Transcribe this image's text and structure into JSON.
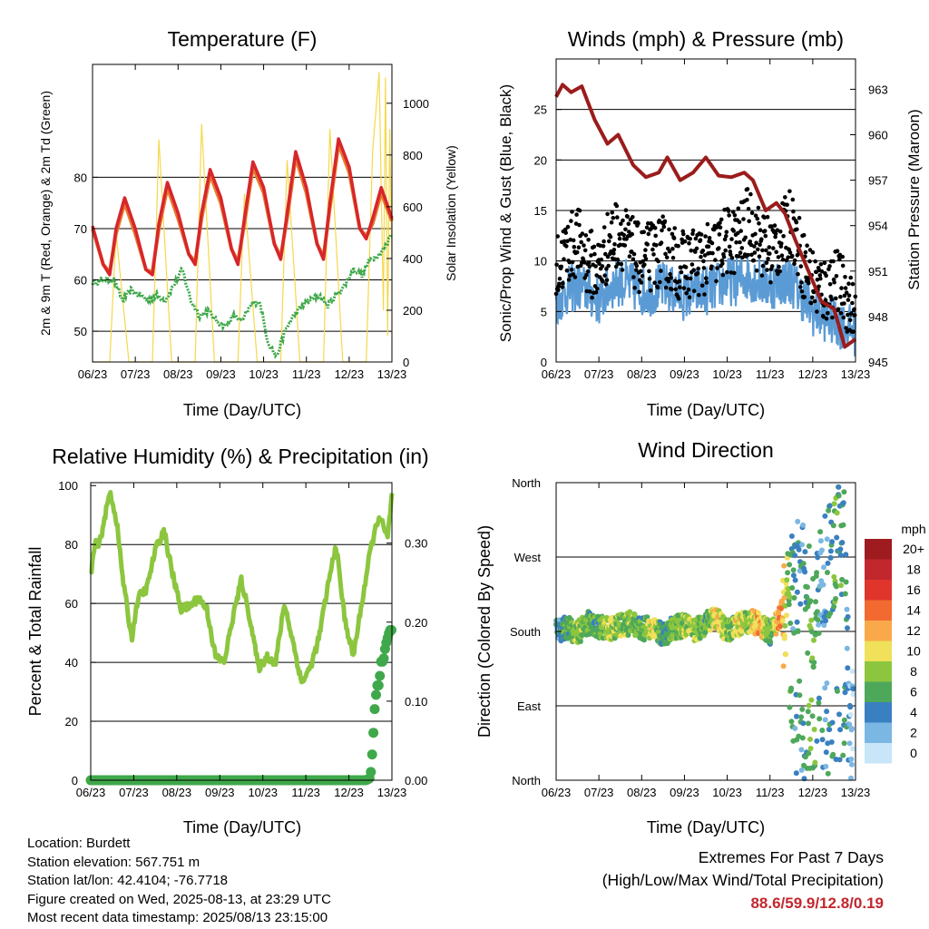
{
  "xticks": [
    "06/23",
    "07/23",
    "08/23",
    "09/23",
    "10/23",
    "11/23",
    "12/23",
    "13/23"
  ],
  "colors": {
    "temp2m": "#e8792c",
    "temp9m": "#d7262b",
    "dew": "#3fa84a",
    "solar": "#f5d84a",
    "wind": "#5b9bd5",
    "gust": "#000000",
    "pressure": "#9b1c1c",
    "rh": "#8cc63f",
    "precip": "#3fa84a"
  },
  "panels": {
    "temperature": {
      "title": "Temperature (F)",
      "xlabel": "Time (Day/UTC)",
      "ylabel": "2m & 9m T (Red, Orange) & 2m Td (Green)",
      "ylabel_right": "Solar Insolation (Yellow)",
      "yticks": [
        "50",
        "60",
        "70",
        "80"
      ],
      "yticks_right": [
        "0",
        "200",
        "400",
        "600",
        "800",
        "1000"
      ]
    },
    "winds": {
      "title": "Winds (mph) & Pressure (mb)",
      "xlabel": "Time (Day/UTC)",
      "ylabel": "Sonic/Prop Wind & Gust (Blue, Black)",
      "ylabel_right": "Station Pressure (Maroon)",
      "yticks": [
        "0",
        "5",
        "10",
        "15",
        "20",
        "25"
      ],
      "yticks_right": [
        "945",
        "948",
        "951",
        "954",
        "957",
        "960",
        "963"
      ]
    },
    "humidity": {
      "title": "Relative Humidity (%) & Precipitation (in)",
      "xlabel": "Time (Day/UTC)",
      "ylabel": "Percent & Total Rainfall",
      "yticks": [
        "0",
        "20",
        "40",
        "60",
        "80",
        "100"
      ],
      "yticks_right": [
        "0.00",
        "0.10",
        "0.20",
        "0.30"
      ]
    },
    "direction": {
      "title": "Wind Direction",
      "xlabel": "Time (Day/UTC)",
      "ylabel": "Direction (Colored By Speed)",
      "yticks": [
        "North",
        "East",
        "South",
        "West",
        "North"
      ],
      "legend_title": "mph",
      "legend_labels": [
        "20+",
        "18",
        "16",
        "14",
        "12",
        "10",
        "8",
        "6",
        "4",
        "2",
        "0"
      ],
      "legend_colors": [
        "#9e1b1f",
        "#c1272d",
        "#e0352b",
        "#f26a30",
        "#f9a94a",
        "#f0e05a",
        "#8cc63f",
        "#4ea85a",
        "#3a80c1",
        "#7bb7e3",
        "#c8e6f8"
      ]
    }
  },
  "chart_data": [
    {
      "type": "line",
      "ylim": [
        44,
        102
      ],
      "ylim_right": [
        0,
        1150
      ],
      "x_days": [
        0,
        7
      ],
      "series": [
        {
          "x": [
            0,
            0.25,
            0.4,
            0.55,
            0.75,
            1.0,
            1.25,
            1.4,
            1.55,
            1.75,
            2.0,
            2.25,
            2.4,
            2.55,
            2.75,
            3.0,
            3.25,
            3.4,
            3.55,
            3.75,
            4.0,
            4.25,
            4.4,
            4.55,
            4.75,
            5.0,
            5.25,
            5.4,
            5.55,
            5.75,
            6.0,
            6.25,
            6.4,
            6.55,
            6.75,
            7.0
          ],
          "values": [
            70.5,
            63,
            61,
            70,
            76,
            70,
            62,
            61,
            71,
            79,
            73,
            65,
            63,
            73,
            81.5,
            76,
            66,
            63,
            72,
            83,
            78,
            67,
            64,
            73,
            85,
            78,
            67,
            64,
            75,
            87.5,
            82,
            70,
            68,
            72,
            78,
            72
          ]
        },
        {
          "x": [
            0,
            0.25,
            0.4,
            0.55,
            0.75,
            1.0,
            1.25,
            1.4,
            1.55,
            1.75,
            2.0,
            2.25,
            2.4,
            2.55,
            2.75,
            3.0,
            3.25,
            3.4,
            3.55,
            3.75,
            4.0,
            4.25,
            4.4,
            4.55,
            4.75,
            5.0,
            5.25,
            5.4,
            5.55,
            5.75,
            6.0,
            6.25,
            6.4,
            6.55,
            6.75,
            7.0
          ],
          "values": [
            70,
            63,
            61.5,
            69,
            75,
            69,
            62,
            61.5,
            70,
            78,
            72,
            65,
            63.5,
            72,
            80.5,
            75,
            66,
            63.5,
            71,
            82,
            77,
            67,
            64.5,
            72,
            84,
            77,
            67,
            64.5,
            74,
            86.5,
            81,
            70,
            68.5,
            71,
            77,
            71.5
          ]
        },
        {
          "x": [
            0,
            0.3,
            0.5,
            0.7,
            0.9,
            1.1,
            1.3,
            1.5,
            1.7,
            1.9,
            2.1,
            2.3,
            2.5,
            2.7,
            2.9,
            3.1,
            3.3,
            3.5,
            3.7,
            3.9,
            4.1,
            4.3,
            4.5,
            4.7,
            4.9,
            5.1,
            5.3,
            5.5,
            5.7,
            5.9,
            6.1,
            6.3,
            6.5,
            6.7,
            6.9,
            7.0
          ],
          "values": [
            59.5,
            60,
            60,
            56,
            58,
            57,
            56,
            57,
            56,
            59,
            62,
            56,
            53,
            54,
            52,
            51,
            53,
            52,
            55,
            56,
            48,
            45,
            50,
            53,
            55,
            56,
            57,
            55,
            57,
            59,
            62,
            61,
            64,
            65,
            67,
            70
          ]
        },
        {
          "x": [
            0,
            0.4,
            0.55,
            0.85,
            1.0,
            1.4,
            1.55,
            1.85,
            2.0,
            2.4,
            2.55,
            2.85,
            3.0,
            3.4,
            3.55,
            3.85,
            4.0,
            4.4,
            4.55,
            4.85,
            5.0,
            5.4,
            5.55,
            5.85,
            6.0,
            6.4,
            6.55,
            6.7,
            6.8,
            6.85,
            6.9,
            6.95,
            7.0
          ],
          "values": [
            0,
            0,
            500,
            0,
            0,
            0,
            860,
            0,
            0,
            0,
            920,
            0,
            0,
            0,
            650,
            0,
            0,
            0,
            780,
            0,
            0,
            0,
            900,
            0,
            0,
            0,
            820,
            1120,
            200,
            1100,
            100,
            900,
            400
          ]
        }
      ]
    },
    {
      "type": "line",
      "ylim": [
        0,
        30
      ],
      "ylim_right": [
        945,
        965
      ],
      "x_days": [
        0,
        7
      ],
      "series": [
        {
          "x": [
            0,
            0.25,
            0.5,
            0.75,
            1.0,
            1.25,
            1.5,
            1.75,
            2.0,
            2.25,
            2.5,
            2.75,
            3.0,
            3.25,
            3.5,
            3.75,
            4.0,
            4.25,
            4.5,
            4.75,
            5.0,
            5.25,
            5.5,
            5.75,
            6.0,
            6.25,
            6.5,
            6.75,
            7.0
          ],
          "values": [
            6,
            7,
            7.5,
            7,
            6,
            7.5,
            8,
            7.5,
            7,
            7,
            7.5,
            7,
            6.5,
            7,
            7,
            7.5,
            8,
            8,
            8.5,
            8,
            7.5,
            8,
            8,
            6.5,
            5,
            4.5,
            4,
            3.5,
            3
          ]
        },
        {
          "x": [
            0,
            0.25,
            0.5,
            0.75,
            1.0,
            1.25,
            1.5,
            1.75,
            2.0,
            2.25,
            2.5,
            2.75,
            3.0,
            3.25,
            3.5,
            3.75,
            4.0,
            4.25,
            4.5,
            4.75,
            5.0,
            5.25,
            5.5,
            5.75,
            6.0,
            6.25,
            6.5,
            6.75,
            7.0
          ],
          "values": [
            9,
            11,
            12,
            10,
            9,
            12,
            13,
            11,
            10,
            10.5,
            11,
            10,
            9.5,
            10,
            10,
            11,
            12,
            12,
            14,
            12,
            11,
            12,
            14,
            10,
            8,
            7,
            8,
            7,
            4
          ]
        },
        {
          "x": [
            0,
            0.15,
            0.35,
            0.6,
            0.9,
            1.2,
            1.45,
            1.8,
            2.1,
            2.4,
            2.6,
            2.9,
            3.2,
            3.5,
            3.8,
            4.1,
            4.4,
            4.6,
            4.9,
            5.15,
            5.35,
            5.6,
            5.9,
            6.2,
            6.5,
            6.75,
            7.0
          ],
          "values": [
            962.5,
            963.3,
            962.8,
            963.2,
            961,
            959.4,
            960,
            958,
            957.2,
            957.5,
            958.5,
            957,
            957.5,
            958.5,
            957.3,
            957.2,
            957.5,
            957,
            955,
            955.5,
            954.8,
            953,
            951,
            949,
            948.5,
            946,
            946.5
          ]
        }
      ]
    },
    {
      "type": "line",
      "ylim": [
        0,
        101
      ],
      "ylim_right": [
        0,
        0.3765
      ],
      "x_days": [
        0,
        7
      ],
      "series": [
        {
          "x": [
            0,
            0.1,
            0.2,
            0.45,
            0.6,
            0.75,
            0.95,
            1.1,
            1.3,
            1.5,
            1.7,
            1.9,
            2.1,
            2.3,
            2.5,
            2.7,
            2.9,
            3.1,
            3.3,
            3.5,
            3.7,
            3.9,
            4.1,
            4.3,
            4.5,
            4.7,
            4.9,
            5.1,
            5.3,
            5.5,
            5.7,
            5.9,
            6.1,
            6.3,
            6.5,
            6.7,
            6.9,
            7.0
          ],
          "values": [
            70,
            80,
            80,
            98,
            88,
            68,
            48,
            62,
            65,
            78,
            85,
            70,
            58,
            59,
            62,
            58,
            42,
            40,
            55,
            68,
            55,
            38,
            42,
            40,
            60,
            47,
            33,
            38,
            48,
            65,
            80,
            55,
            42,
            60,
            78,
            90,
            82,
            97
          ]
        },
        {
          "x": [
            0,
            6.4,
            6.5,
            6.55,
            6.6,
            6.65,
            6.7,
            6.75,
            6.8,
            6.85,
            6.9,
            6.95,
            7.0
          ],
          "values": [
            0,
            0,
            0.003,
            0.04,
            0.09,
            0.12,
            0.12,
            0.15,
            0.15,
            0.17,
            0.18,
            0.19,
            0.19
          ]
        }
      ]
    },
    {
      "type": "scatter",
      "ylim": [
        0,
        360
      ],
      "x_days": [
        0,
        7
      ],
      "series": [
        {
          "x": [
            0,
            0.25,
            0.5,
            0.75,
            1.0,
            1.25,
            1.5,
            1.75,
            2.0,
            2.25,
            2.5,
            2.75,
            3.0,
            3.25,
            3.5,
            3.75,
            4.0,
            4.25,
            4.5,
            4.75,
            5.0,
            5.25,
            5.5,
            5.75,
            6.0,
            6.25,
            6.5,
            6.75,
            6.9
          ],
          "values": [
            180,
            185,
            178,
            190,
            185,
            183,
            188,
            190,
            182,
            186,
            175,
            185,
            187,
            182,
            190,
            195,
            180,
            188,
            192,
            190,
            178,
            200,
            230,
            260,
            190,
            250,
            280,
            300,
            80
          ],
          "speeds": [
            4,
            6,
            8,
            7,
            6,
            9,
            7,
            8,
            6,
            10,
            5,
            7,
            8,
            9,
            6,
            11,
            7,
            10,
            8,
            12,
            6,
            13,
            5,
            4,
            7,
            3,
            6,
            5,
            2
          ]
        }
      ]
    }
  ],
  "info": {
    "location": "Location: Burdett",
    "elevation": "Station elevation: 567.751 m",
    "latlon": "Station lat/lon: 42.4104; -76.7718",
    "created": "Figure created on Wed, 2025-08-13, at 23:29 UTC",
    "recent": "Most recent data timestamp: 2025/08/13 23:15:00"
  },
  "extremes": {
    "title": "Extremes For Past 7 Days",
    "subtitle": "(High/Low/Max Wind/Total Precipitation)",
    "values": "88.6/59.9/12.8/0.19"
  }
}
